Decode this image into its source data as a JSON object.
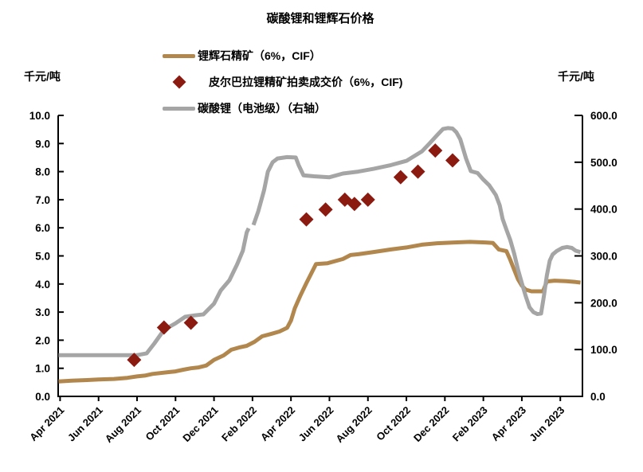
{
  "title": "碳酸锂和锂辉石价格",
  "left_axis_unit": "千元/吨",
  "right_axis_unit": "千元/吨",
  "legend": [
    {
      "label": "锂辉石精矿（6%，CIF）",
      "marker": "line",
      "color": "#B1874E"
    },
    {
      "label": "皮尔巴拉锂精矿拍卖成交价（6%，CIF)",
      "marker": "diamond",
      "color": "#8B1A10"
    },
    {
      "label": "碳酸锂（电池级）（右轴）",
      "marker": "line",
      "color": "#A5A5A5"
    }
  ],
  "chart_data": {
    "type": "line",
    "title": "碳酸锂和锂辉石价格",
    "x_unit": "months since Apr 2021",
    "x_tick_months": [
      0,
      2,
      4,
      6,
      8,
      10,
      12,
      14,
      16,
      18,
      20,
      22,
      24,
      26
    ],
    "x_tick_labels": [
      "Apr 2021",
      "Jun 2021",
      "Aug 2021",
      "Oct 2021",
      "Dec 2021",
      "Feb 2022",
      "Apr 2022",
      "Jun 2022",
      "Aug 2022",
      "Oct 2022",
      "Dec 2022",
      "Feb 2023",
      "Apr 2023",
      "Jun 2023"
    ],
    "left_axis": {
      "min": 0,
      "max": 10,
      "step": 1,
      "tick_labels": [
        "0.0",
        "1.0",
        "2.0",
        "3.0",
        "4.0",
        "5.0",
        "6.0",
        "7.0",
        "8.0",
        "9.0",
        "10.0"
      ]
    },
    "right_axis": {
      "min": 0,
      "max": 600,
      "step": 100,
      "tick_labels": [
        "0.0",
        "100.0",
        "200.0",
        "300.0",
        "400.0",
        "500.0",
        "600.0"
      ]
    },
    "grid": false,
    "legend_position": "top-left",
    "series": [
      {
        "name": "锂辉石精矿（6%，CIF）",
        "axis": "left",
        "color": "#B1874E",
        "kind": "line",
        "stroke_width": 5,
        "points": [
          [
            -0.08,
            0.53
          ],
          [
            0.6,
            0.56
          ],
          [
            1.4,
            0.58
          ],
          [
            2.0,
            0.6
          ],
          [
            2.8,
            0.62
          ],
          [
            3.5,
            0.66
          ],
          [
            4.0,
            0.71
          ],
          [
            4.4,
            0.74
          ],
          [
            4.8,
            0.8
          ],
          [
            5.6,
            0.86
          ],
          [
            6.0,
            0.89
          ],
          [
            6.4,
            0.95
          ],
          [
            6.8,
            1.0
          ],
          [
            7.2,
            1.03
          ],
          [
            7.6,
            1.1
          ],
          [
            8.0,
            1.3
          ],
          [
            8.5,
            1.46
          ],
          [
            8.9,
            1.66
          ],
          [
            9.3,
            1.74
          ],
          [
            9.7,
            1.8
          ],
          [
            10.1,
            1.94
          ],
          [
            10.5,
            2.14
          ],
          [
            11.0,
            2.23
          ],
          [
            11.4,
            2.31
          ],
          [
            11.8,
            2.44
          ],
          [
            12.0,
            2.7
          ],
          [
            12.2,
            3.14
          ],
          [
            12.5,
            3.6
          ],
          [
            12.8,
            4.03
          ],
          [
            13.0,
            4.3
          ],
          [
            13.3,
            4.71
          ],
          [
            13.9,
            4.74
          ],
          [
            14.7,
            4.89
          ],
          [
            15.1,
            5.03
          ],
          [
            15.5,
            5.06
          ],
          [
            16.3,
            5.14
          ],
          [
            17.2,
            5.23
          ],
          [
            18.0,
            5.3
          ],
          [
            18.8,
            5.4
          ],
          [
            19.6,
            5.45
          ],
          [
            20.5,
            5.48
          ],
          [
            21.3,
            5.5
          ],
          [
            22.1,
            5.48
          ],
          [
            22.5,
            5.46
          ],
          [
            22.8,
            5.23
          ],
          [
            23.2,
            5.17
          ],
          [
            23.4,
            4.86
          ],
          [
            23.6,
            4.51
          ],
          [
            23.8,
            4.17
          ],
          [
            24.0,
            3.94
          ],
          [
            24.2,
            3.8
          ],
          [
            24.5,
            3.74
          ],
          [
            25.1,
            3.74
          ],
          [
            25.3,
            4.09
          ],
          [
            25.7,
            4.12
          ],
          [
            26.3,
            4.1
          ],
          [
            26.8,
            4.07
          ],
          [
            27.05,
            4.05
          ]
        ]
      },
      {
        "name": "碳酸锂（电池级）（右轴）",
        "axis": "right",
        "color": "#A5A5A5",
        "kind": "line",
        "stroke_width": 5,
        "segments": [
          [
            [
              -0.08,
              88
            ],
            [
              1,
              88
            ],
            [
              2,
              88
            ],
            [
              3,
              88
            ],
            [
              4,
              88
            ],
            [
              4.5,
              92
            ],
            [
              4.9,
              113
            ],
            [
              5.4,
              142
            ],
            [
              6.0,
              156
            ],
            [
              6.5,
              170
            ],
            [
              7.0,
              173
            ],
            [
              7.45,
              175
            ],
            [
              8.0,
              198
            ],
            [
              8.35,
              226
            ],
            [
              8.8,
              248
            ],
            [
              9.2,
              282
            ],
            [
              9.5,
              311
            ],
            [
              9.7,
              350
            ],
            [
              9.8,
              359
            ]
          ],
          [
            [
              10.05,
              366
            ],
            [
              10.3,
              395
            ],
            [
              10.6,
              440
            ],
            [
              10.8,
              480
            ],
            [
              11.05,
              500
            ],
            [
              11.3,
              508
            ],
            [
              11.8,
              511
            ],
            [
              12.25,
              510
            ],
            [
              12.4,
              494
            ],
            [
              12.65,
              472
            ],
            [
              13.2,
              470
            ],
            [
              14.0,
              468
            ],
            [
              14.7,
              476
            ],
            [
              15.5,
              480
            ],
            [
              16.3,
              486
            ],
            [
              17.2,
              494
            ],
            [
              18.0,
              503
            ],
            [
              18.8,
              523
            ],
            [
              19.2,
              540
            ],
            [
              19.6,
              558
            ],
            [
              19.9,
              571
            ],
            [
              20.15,
              573
            ],
            [
              20.4,
              572
            ],
            [
              20.6,
              564
            ],
            [
              20.8,
              549
            ],
            [
              21.1,
              508
            ],
            [
              21.35,
              481
            ],
            [
              21.7,
              477
            ],
            [
              22.0,
              463
            ],
            [
              22.3,
              451
            ],
            [
              22.65,
              430
            ],
            [
              22.85,
              408
            ],
            [
              23.0,
              379
            ],
            [
              23.2,
              356
            ],
            [
              23.4,
              334
            ],
            [
              23.6,
              305
            ],
            [
              23.8,
              271
            ],
            [
              24.0,
              242
            ],
            [
              24.2,
              214
            ],
            [
              24.4,
              190
            ],
            [
              24.6,
              180
            ],
            [
              24.8,
              176
            ],
            [
              25.0,
              177
            ],
            [
              25.15,
              215
            ],
            [
              25.3,
              258
            ],
            [
              25.45,
              290
            ],
            [
              25.6,
              303
            ],
            [
              25.8,
              310
            ],
            [
              26.1,
              317
            ],
            [
              26.35,
              319
            ],
            [
              26.6,
              317
            ],
            [
              26.8,
              311
            ],
            [
              27.05,
              308
            ]
          ]
        ]
      },
      {
        "name": "皮尔巴拉锂精矿拍卖成交价（6%，CIF)",
        "axis": "left",
        "color": "#8B1A10",
        "kind": "scatter",
        "marker": "diamond",
        "points": [
          [
            3.85,
            1.3
          ],
          [
            5.4,
            2.45
          ],
          [
            6.8,
            2.62
          ],
          [
            12.8,
            6.3
          ],
          [
            13.8,
            6.65
          ],
          [
            14.8,
            7.0
          ],
          [
            15.3,
            6.85
          ],
          [
            16.0,
            7.0
          ],
          [
            17.7,
            7.8
          ],
          [
            18.6,
            8.0
          ],
          [
            19.5,
            8.75
          ],
          [
            20.4,
            8.4
          ]
        ]
      }
    ]
  }
}
